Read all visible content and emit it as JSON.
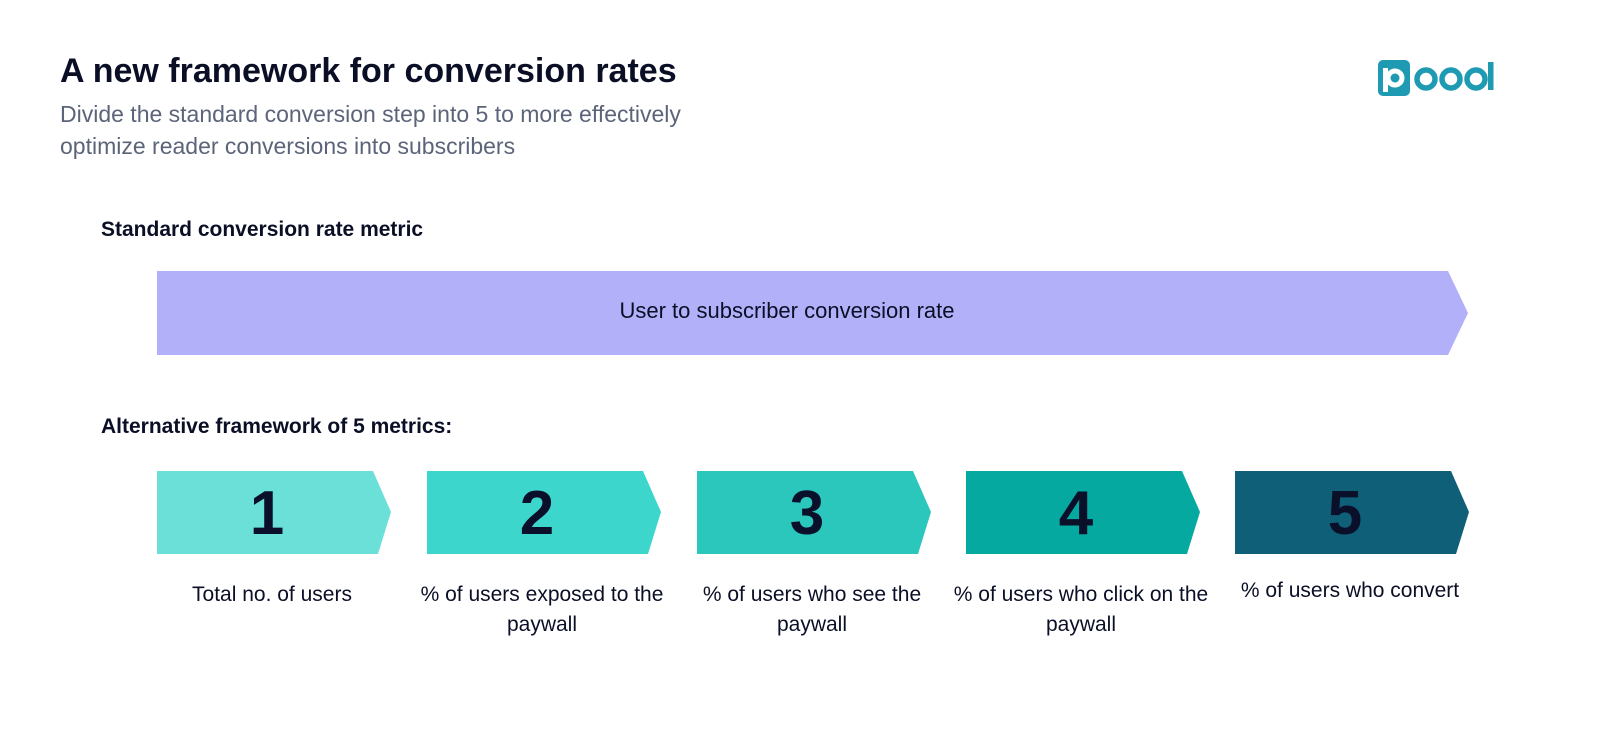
{
  "header": {
    "title": "A new framework for conversion rates",
    "subtitle": "Divide the standard conversion step into 5 to more effectively optimize reader conversions into subscribers"
  },
  "logo": {
    "text": "poool",
    "color": "#1e9bb3"
  },
  "standard": {
    "label": "Standard conversion rate metric",
    "arrow_text": "User to subscriber conversion rate",
    "color": "#b3b0fa"
  },
  "alternative": {
    "label": "Alternative framework of 5 metrics:",
    "steps": [
      {
        "number": "1",
        "caption": "Total no. of users",
        "color": "#6ae0d8"
      },
      {
        "number": "2",
        "caption": "% of users exposed to the paywall",
        "color": "#3dd6cd"
      },
      {
        "number": "3",
        "caption": "% of users who see the paywall",
        "color": "#2bc6bc"
      },
      {
        "number": "4",
        "caption": "% of users who click on the paywall",
        "color": "#05a99f"
      },
      {
        "number": "5",
        "caption": "% of users who convert",
        "color": "#0f5f78"
      }
    ]
  }
}
